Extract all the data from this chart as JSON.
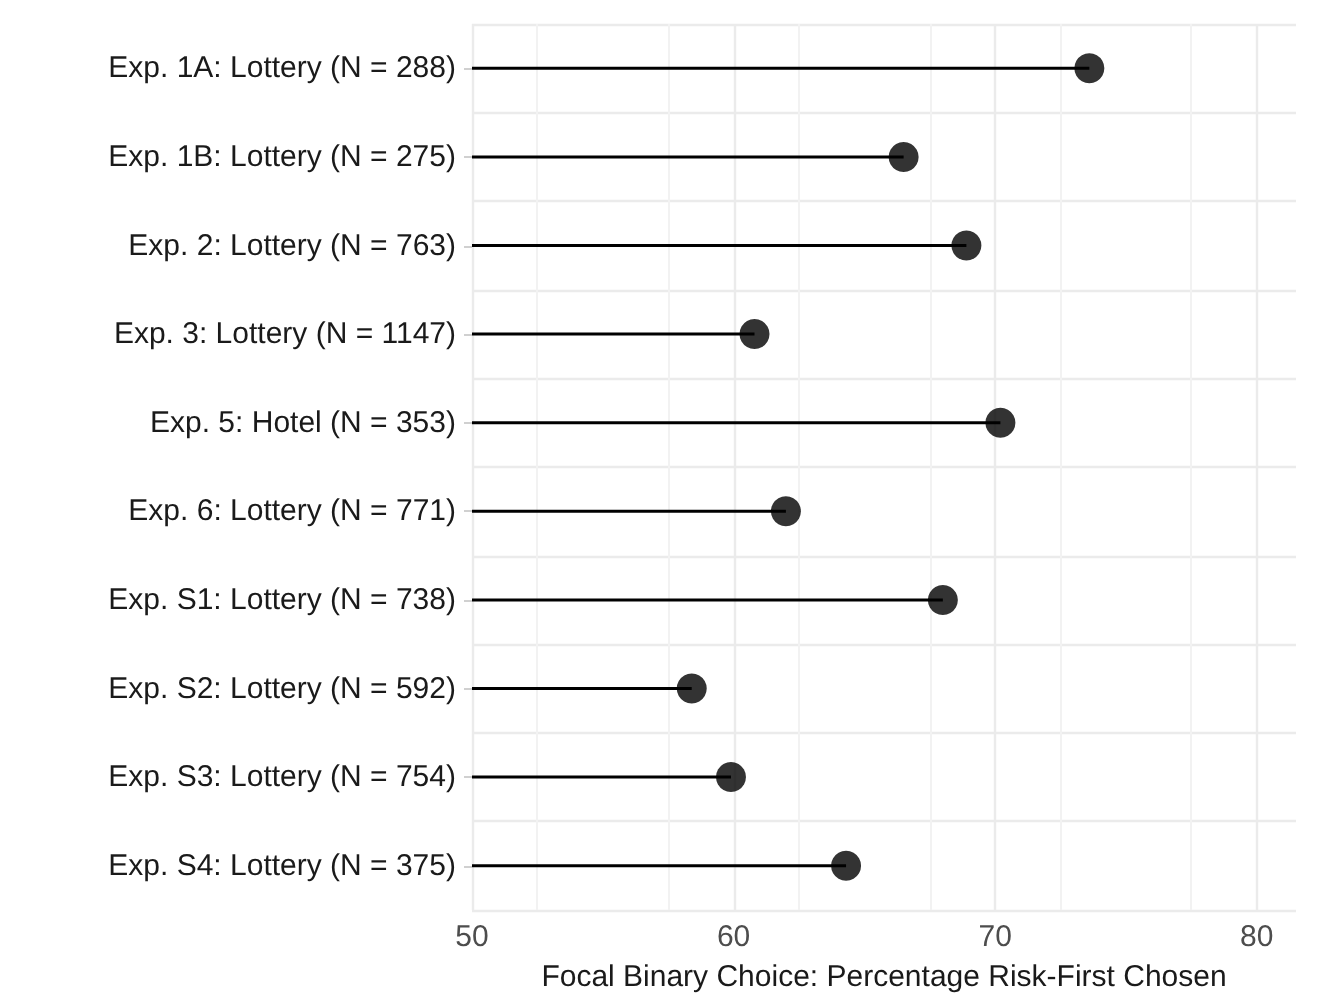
{
  "chart_data": {
    "type": "lollipop",
    "orientation": "horizontal",
    "xlabel": "Focal Binary Choice: Percentage Risk-First Chosen",
    "categories": [
      "Exp. 1A: Lottery (N = 288)",
      "Exp. 1B: Lottery (N = 275)",
      "Exp. 2: Lottery (N = 763)",
      "Exp. 3: Lottery (N = 1147)",
      "Exp. 5: Hotel (N = 353)",
      "Exp. 6: Lottery (N = 771)",
      "Exp. S1: Lottery (N = 738)",
      "Exp. S2: Lottery (N = 592)",
      "Exp. S3: Lottery (N = 754)",
      "Exp. S4: Lottery (N = 375)"
    ],
    "values": [
      73.6,
      66.5,
      68.9,
      60.8,
      70.2,
      62.0,
      68.0,
      58.4,
      59.9,
      64.3
    ],
    "color": "#000000",
    "marker": "circle",
    "xlim": [
      50,
      81.5
    ],
    "xticks": [
      50,
      60,
      70,
      80
    ],
    "grid": true
  }
}
